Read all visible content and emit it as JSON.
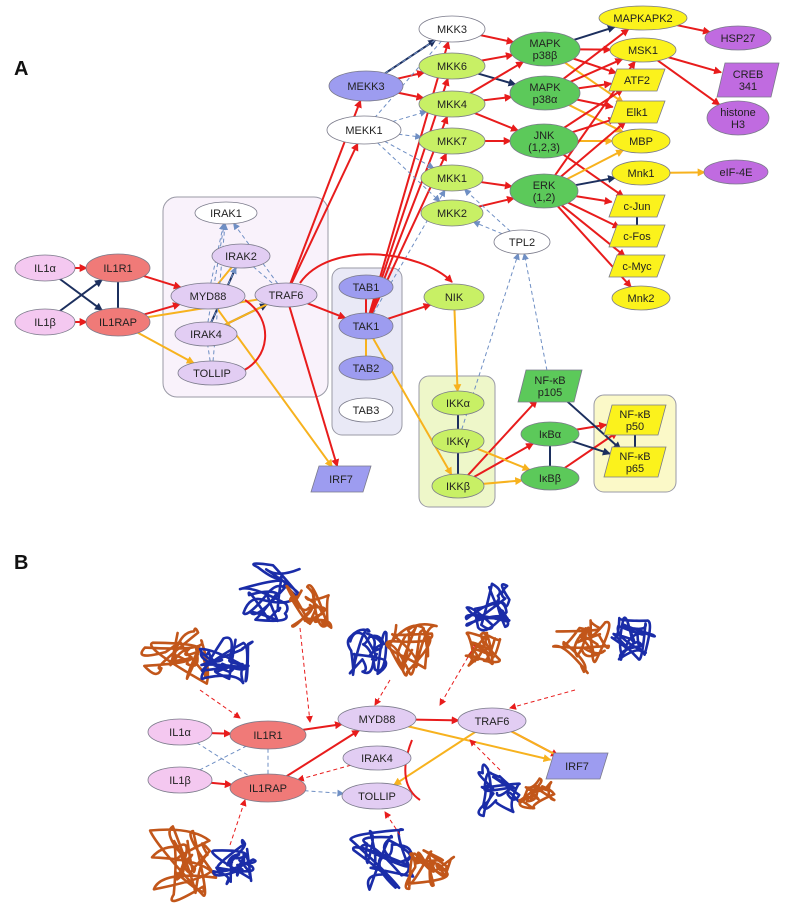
{
  "panels": {
    "a": "A",
    "b": "B"
  },
  "colors": {
    "red": "#e81c1c",
    "orange": "#f7b21e",
    "navy": "#1c2f5e",
    "dash": "#6f8fc4",
    "pink": "#f4c8f0",
    "salmon": "#f07a78",
    "lavender": "#e2cdf3",
    "periwinkle": "#9d9cf0",
    "white": "#ffffff",
    "lime": "#c8f065",
    "green": "#5cc95a",
    "yellow": "#fbf21c",
    "purple": "#c06be0",
    "protein_blue": "#1a2ca8",
    "protein_orange": "#c2561a"
  },
  "panel_a": {
    "nodes": [
      {
        "id": "il1a",
        "label": "IL1α",
        "style": "pink"
      },
      {
        "id": "il1b",
        "label": "IL1β",
        "style": "pink"
      },
      {
        "id": "il1r1",
        "label": "IL1R1",
        "style": "salmon"
      },
      {
        "id": "il1rap",
        "label": "IL1RAP",
        "style": "salmon"
      },
      {
        "id": "irak1",
        "label": "IRAK1",
        "style": "white"
      },
      {
        "id": "irak2",
        "label": "IRAK2",
        "style": "lavender"
      },
      {
        "id": "myd88",
        "label": "MYD88",
        "style": "lavender"
      },
      {
        "id": "irak4",
        "label": "IRAK4",
        "style": "lavender"
      },
      {
        "id": "tollip",
        "label": "TOLLIP",
        "style": "lavender"
      },
      {
        "id": "traf6",
        "label": "TRAF6",
        "style": "lavender"
      },
      {
        "id": "mekk3",
        "label": "MEKK3",
        "style": "periwinkle"
      },
      {
        "id": "mekk1",
        "label": "MEKK1",
        "style": "white"
      },
      {
        "id": "tab1",
        "label": "TAB1",
        "style": "periwinkle"
      },
      {
        "id": "tak1",
        "label": "TAK1",
        "style": "periwinkle"
      },
      {
        "id": "tab2",
        "label": "TAB2",
        "style": "periwinkle"
      },
      {
        "id": "tab3",
        "label": "TAB3",
        "style": "white"
      },
      {
        "id": "irf7",
        "label": "IRF7",
        "style": "periwinkle"
      },
      {
        "id": "mkk3",
        "label": "MKK3",
        "style": "white"
      },
      {
        "id": "mkk6",
        "label": "MKK6",
        "style": "lime"
      },
      {
        "id": "mkk4",
        "label": "MKK4",
        "style": "lime"
      },
      {
        "id": "mkk7",
        "label": "MKK7",
        "style": "lime"
      },
      {
        "id": "mkk1",
        "label": "MKK1",
        "style": "lime"
      },
      {
        "id": "mkk2",
        "label": "MKK2",
        "style": "lime"
      },
      {
        "id": "nik",
        "label": "NIK",
        "style": "lime"
      },
      {
        "id": "ikka",
        "label": "IKKα",
        "style": "lime"
      },
      {
        "id": "ikkg",
        "label": "IKKγ",
        "style": "lime"
      },
      {
        "id": "ikkb",
        "label": "IKKβ",
        "style": "lime"
      },
      {
        "id": "p38b",
        "label": "MAPK\np38β",
        "style": "green"
      },
      {
        "id": "p38a",
        "label": "MAPK\np38α",
        "style": "green"
      },
      {
        "id": "jnk",
        "label": "JNK\n(1,2,3)",
        "style": "green"
      },
      {
        "id": "erk",
        "label": "ERK\n(1,2)",
        "style": "green"
      },
      {
        "id": "tpl2",
        "label": "TPL2",
        "style": "white"
      },
      {
        "id": "nfkbp105",
        "label": "NF-κB\np105",
        "style": "green"
      },
      {
        "id": "ikba",
        "label": "IκBα",
        "style": "green"
      },
      {
        "id": "ikbb",
        "label": "IκBβ",
        "style": "green"
      },
      {
        "id": "mapkapk2",
        "label": "MAPKAPK2",
        "style": "yellow"
      },
      {
        "id": "msk1",
        "label": "MSK1",
        "style": "yellow"
      },
      {
        "id": "atf2",
        "label": "ATF2",
        "style": "yellow"
      },
      {
        "id": "elk1",
        "label": "Elk1",
        "style": "yellow"
      },
      {
        "id": "mbp",
        "label": "MBP",
        "style": "yellow"
      },
      {
        "id": "mnk1",
        "label": "Mnk1",
        "style": "yellow"
      },
      {
        "id": "cjun",
        "label": "c-Jun",
        "style": "yellow"
      },
      {
        "id": "cfos",
        "label": "c-Fos",
        "style": "yellow"
      },
      {
        "id": "cmyc",
        "label": "c-Myc",
        "style": "yellow"
      },
      {
        "id": "mnk2",
        "label": "Mnk2",
        "style": "yellow"
      },
      {
        "id": "nfkbp50",
        "label": "NF-κB\np50",
        "style": "yellow"
      },
      {
        "id": "nfkbp65",
        "label": "NF-κB\np65",
        "style": "yellow"
      },
      {
        "id": "hsp27",
        "label": "HSP27",
        "style": "purple"
      },
      {
        "id": "creb",
        "label": "CREB\n341",
        "style": "purple"
      },
      {
        "id": "histone",
        "label": "histone\nH3",
        "style": "purple"
      },
      {
        "id": "eif4e",
        "label": "eIF-4E",
        "style": "purple"
      }
    ]
  },
  "panel_b": {
    "nodes": [
      {
        "id": "il1a",
        "label": "IL1α",
        "style": "pink"
      },
      {
        "id": "il1b",
        "label": "IL1β",
        "style": "pink"
      },
      {
        "id": "il1r1",
        "label": "IL1R1",
        "style": "salmon"
      },
      {
        "id": "il1rap",
        "label": "IL1RAP",
        "style": "salmon"
      },
      {
        "id": "myd88",
        "label": "MYD88",
        "style": "lavender"
      },
      {
        "id": "irak4",
        "label": "IRAK4",
        "style": "lavender"
      },
      {
        "id": "tollip",
        "label": "TOLLIP",
        "style": "lavender"
      },
      {
        "id": "traf6",
        "label": "TRAF6",
        "style": "lavender"
      },
      {
        "id": "irf7",
        "label": "IRF7",
        "style": "periwinkle"
      }
    ]
  }
}
